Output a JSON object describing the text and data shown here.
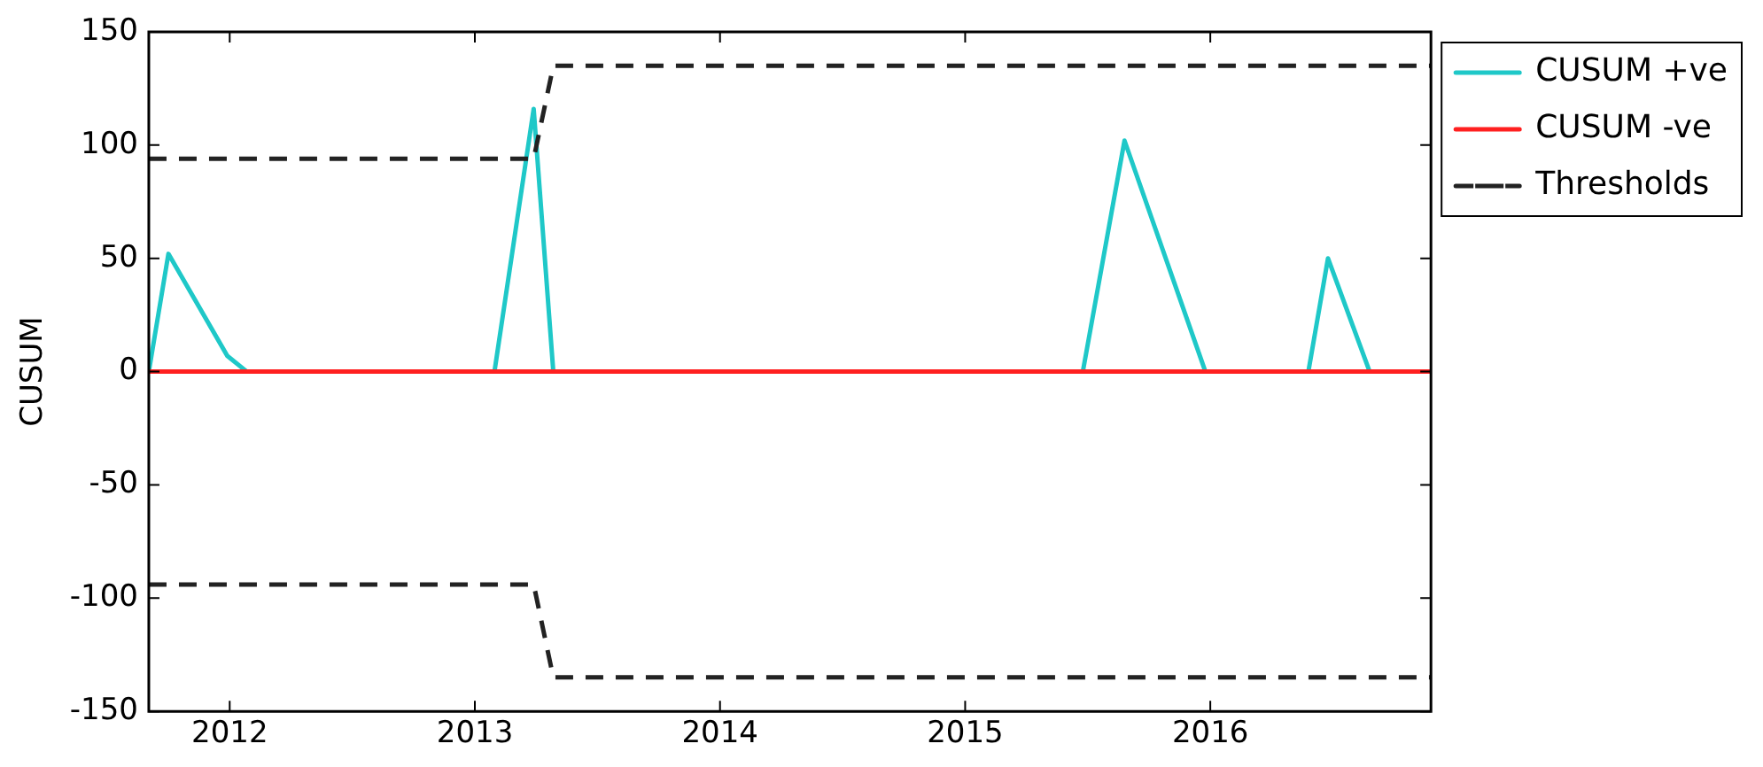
{
  "chart_data": {
    "type": "line",
    "ylabel": "CUSUM",
    "xlim": [
      2011.67,
      2016.9
    ],
    "xticks": [
      2012,
      2013,
      2014,
      2015,
      2016
    ],
    "ylim": [
      -150,
      150
    ],
    "yticks": [
      -150,
      -100,
      -50,
      0,
      50,
      100,
      150
    ],
    "grid": false,
    "legend": "right",
    "marker": "none",
    "series": [
      {
        "name": "CUSUM +ve",
        "color": "#1fc8c8",
        "line_style": "solid",
        "x": [
          2011.67,
          2011.75,
          2011.99,
          2012.07,
          2013.08,
          2013.24,
          2013.32,
          2015.48,
          2015.65,
          2015.98,
          2016.4,
          2016.48,
          2016.65,
          2016.9
        ],
        "values": [
          0,
          52,
          7,
          0,
          0,
          116,
          0,
          0,
          102,
          0,
          0,
          50,
          0,
          0
        ]
      },
      {
        "name": "CUSUM -ve",
        "color": "#ff2020",
        "line_style": "solid",
        "x": [
          2011.67,
          2016.9
        ],
        "values": [
          0,
          0
        ]
      },
      {
        "name": "Thresholds",
        "color": "#222222",
        "line_style": "dashed",
        "x": [
          2011.67,
          2013.24,
          2013.32,
          2016.9
        ],
        "values": [
          94,
          94,
          135,
          135
        ]
      },
      {
        "color": "#222222",
        "line_style": "dashed",
        "x": [
          2011.67,
          2013.24,
          2013.32,
          2016.9
        ],
        "values": [
          -94,
          -94,
          -135,
          -135
        ]
      }
    ]
  }
}
